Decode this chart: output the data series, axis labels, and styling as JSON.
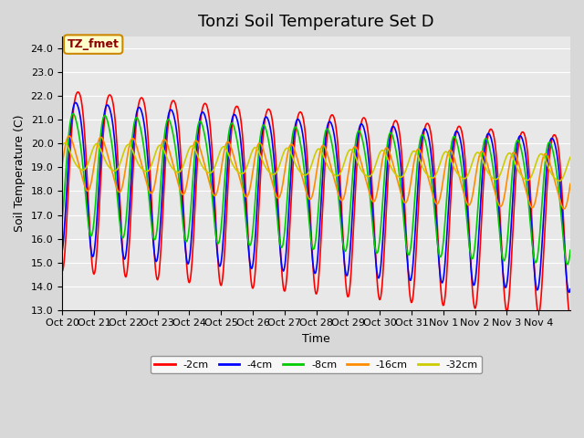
{
  "title": "Tonzi Soil Temperature Set D",
  "xlabel": "Time",
  "ylabel": "Soil Temperature (C)",
  "ylim": [
    13.0,
    24.5
  ],
  "yticks": [
    13.0,
    14.0,
    15.0,
    16.0,
    17.0,
    18.0,
    19.0,
    20.0,
    21.0,
    22.0,
    23.0,
    24.0
  ],
  "background_color": "#e8e8e8",
  "series_colors": [
    "#ff0000",
    "#0000ff",
    "#00cc00",
    "#ff8c00",
    "#cccc00"
  ],
  "series_labels": [
    "-2cm",
    "-4cm",
    "-8cm",
    "-16cm",
    "-32cm"
  ],
  "xtick_labels": [
    "Oct 20",
    "Oct 21",
    "Oct 22",
    "Oct 23",
    "Oct 24",
    "Oct 25",
    "Oct 26",
    "Oct 27",
    "Oct 28",
    "Oct 29",
    "Oct 30",
    "Oct 31",
    "Nov 1",
    "Nov 2",
    "Nov 3",
    "Nov 4"
  ],
  "legend_label": "TZ_fmet",
  "legend_bg": "#ffffcc",
  "legend_border": "#cc8800",
  "title_fontsize": 13,
  "axis_fontsize": 9,
  "tick_fontsize": 8
}
